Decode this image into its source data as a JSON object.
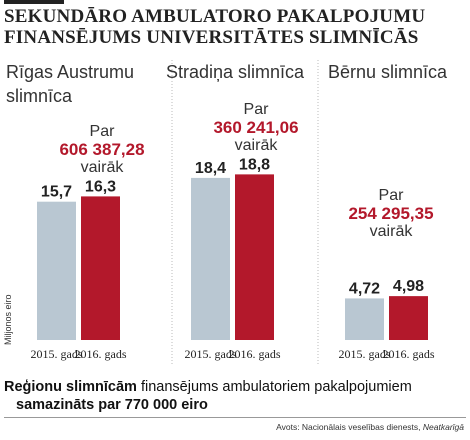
{
  "title": {
    "line1": "SEKUNDĀRO AMBULATORO PAKALPOJUMU",
    "line2": "FINANSĒJUMS UNIVERSITĀTES SLIMNĪCĀS"
  },
  "colors": {
    "y2015": "#b9c7d2",
    "y2016": "#b3182b",
    "amount": "#b3182b"
  },
  "hospitals": [
    {
      "label_line1": "Rīgas Austrumu",
      "label_line2": "slimnīca",
      "note_pre": "Par",
      "note_amount": "606 387,28",
      "note_post": "vairāk"
    },
    {
      "label_line1": "Stradiņa slimnīca",
      "label_line2": "",
      "note_pre": "Par",
      "note_amount": "360 241,06",
      "note_post": "vairāk"
    },
    {
      "label_line1": "Bērnu slimnīca",
      "label_line2": "",
      "note_pre": "Par",
      "note_amount": "254 295,35",
      "note_post": "vairāk"
    }
  ],
  "chart_data": {
    "type": "bar",
    "title": "SEKUNDĀRO AMBULATORO PAKALPOJUMU FINANSĒJUMS UNIVERSITĀTES SLIMNĪCĀS",
    "ylabel": "Miljonos eiro",
    "categories": [
      "Rīgas Austrumu slimnīca",
      "Stradiņa slimnīca",
      "Bērnu slimnīca"
    ],
    "bar_labels": [
      "2015. gads",
      "2016. gads"
    ],
    "series": [
      {
        "name": "2015. gads",
        "values": [
          15.7,
          18.4,
          4.72
        ],
        "labels": [
          "15,7",
          "18,4",
          "4,72"
        ]
      },
      {
        "name": "2016. gads",
        "values": [
          16.3,
          18.8,
          4.98
        ],
        "labels": [
          "16,3",
          "18,8",
          "4,98"
        ]
      }
    ],
    "ylim": [
      0,
      21
    ],
    "grid": false,
    "legend": "none"
  },
  "footnote": {
    "bold_part": "Reģionu slimnīcām",
    "rest_line1": " finansējums ambulatoriem pakalpojumiem",
    "line2": "samazināts par 770 000 eiro"
  },
  "source": {
    "prefix": "Avots: Nacionālais veselības dienests, ",
    "italic": "Neatkarīgā"
  }
}
